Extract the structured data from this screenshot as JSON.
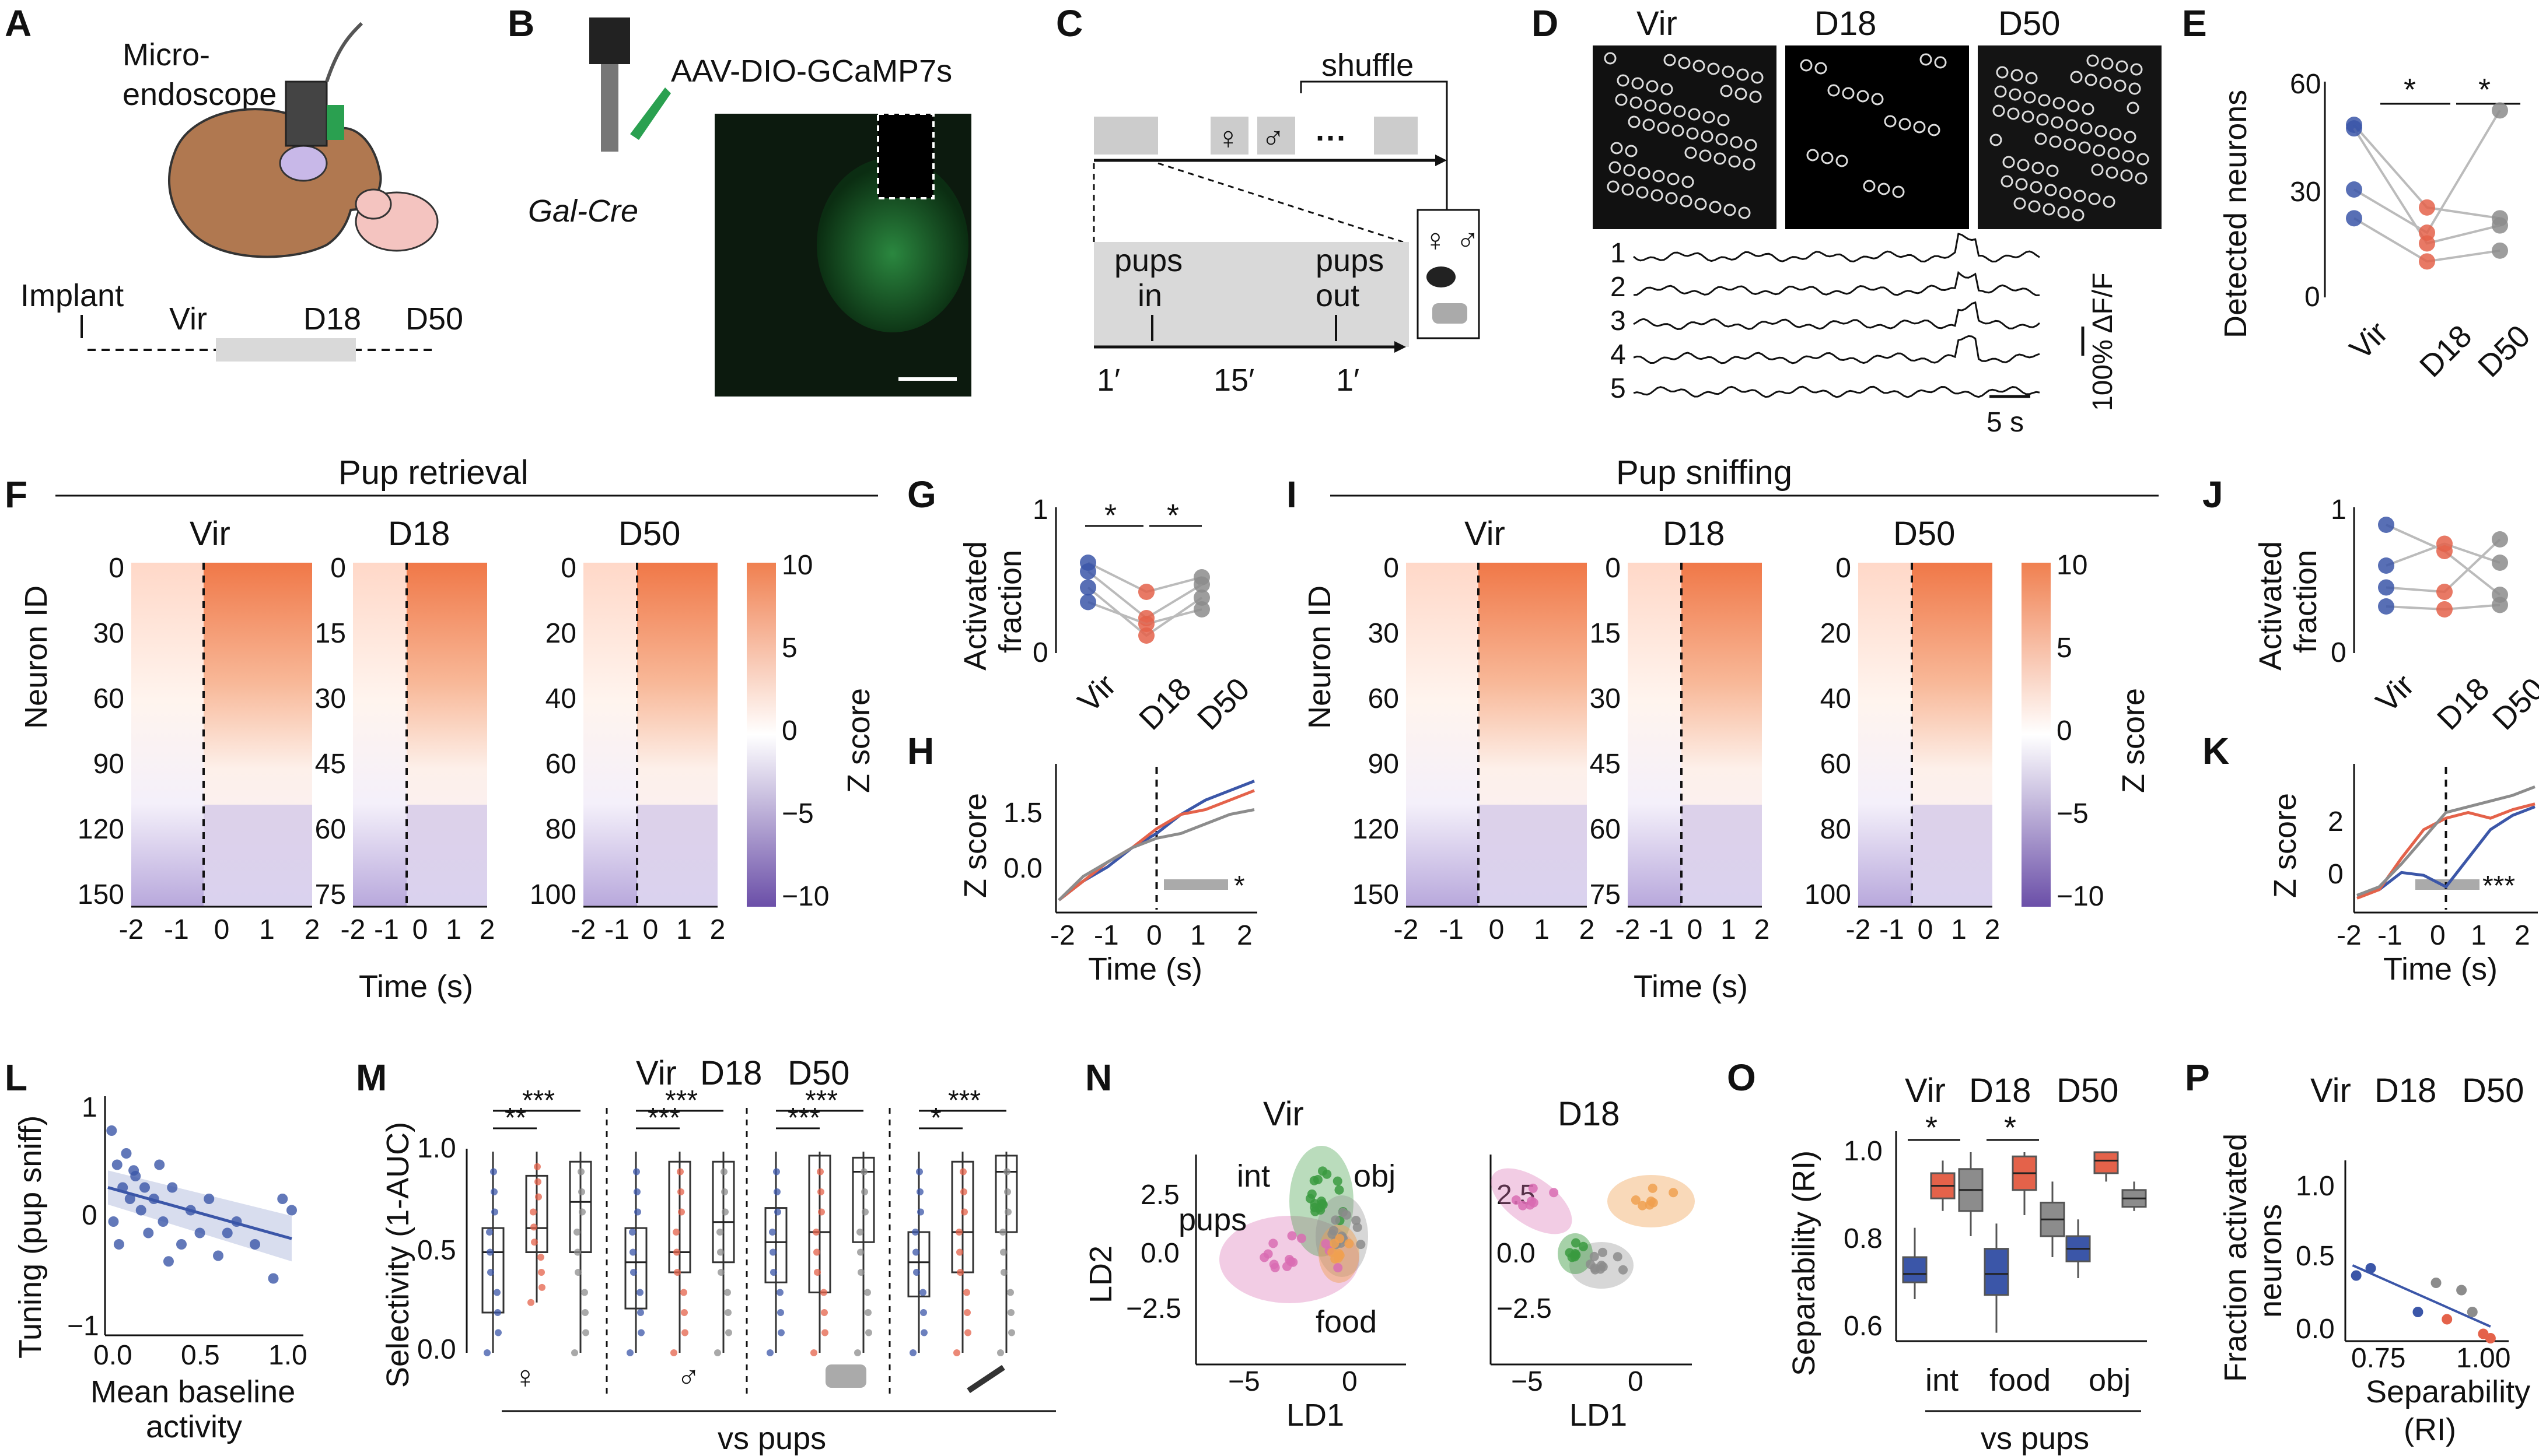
{
  "colors": {
    "vir": "#3b56a8",
    "d18": "#e4624a",
    "d50": "#8c8c8c",
    "pups": "#d96cb3",
    "int": "#3a9a3f",
    "obj": "#8c8c8c",
    "food": "#f0a050",
    "neg": "#6b4fa8",
    "pos": "#f08050"
  },
  "panels": {
    "A": "A",
    "B": "B",
    "C": "C",
    "D": "D",
    "E": "E",
    "F": "F",
    "G": "G",
    "H": "H",
    "I": "I",
    "J": "J",
    "K": "K",
    "L": "L",
    "M": "M",
    "N": "N",
    "O": "O",
    "P": "P"
  },
  "groups": {
    "vir": "Vir",
    "d18": "D18",
    "d50": "D50"
  },
  "panelA": {
    "micro1": "Micro-",
    "micro2": "endoscope",
    "implant": "Implant",
    "vir": "Vir",
    "d18": "D18",
    "d50": "D50"
  },
  "panelB": {
    "virus": "AAV-DIO-GCaMP7s",
    "line": "Gal-Cre"
  },
  "panelC": {
    "shuffle": "shuffle",
    "female": "♀",
    "male": "♂",
    "dots": "···",
    "pups_in_1": "pups",
    "pups_in_2": "in",
    "pups_out_1": "pups",
    "pups_out_2": "out",
    "t1": "1′",
    "t2": "15′",
    "t3": "1′",
    "icons": "♀ ♂"
  },
  "panelD": {
    "traces": [
      "1",
      "2",
      "3",
      "4",
      "5"
    ],
    "scale_dff": "100% ΔF/F",
    "scale_t": "5 s"
  },
  "panelE": {
    "ylabel": "Detected neurons",
    "yticks": [
      "0",
      "30",
      "60"
    ],
    "sig1": "*",
    "sig2": "*"
  },
  "panelF": {
    "title": "Pup retrieval",
    "ylabel": "Neuron ID",
    "xlabel": "Time (s)",
    "cbar_label": "Z score",
    "cbar_ticks": [
      "10",
      "5",
      "0",
      "−5",
      "−10"
    ],
    "vir_ticks": [
      "0",
      "30",
      "60",
      "90",
      "120",
      "150"
    ],
    "d18_ticks": [
      "0",
      "15",
      "30",
      "45",
      "60",
      "75"
    ],
    "d50_ticks": [
      "0",
      "20",
      "40",
      "60",
      "80",
      "100"
    ],
    "xticks": [
      "-2",
      "-1",
      "0",
      "1",
      "2"
    ]
  },
  "panelG": {
    "ylabel1": "Activated",
    "ylabel2": "fraction",
    "yticks": [
      "0",
      "1"
    ],
    "sig1": "*",
    "sig2": "*"
  },
  "panelH": {
    "ylabel": "Z score",
    "xlabel": "Time (s)",
    "yticks": [
      "1.5",
      "0.0"
    ],
    "xticks": [
      "-2",
      "-1",
      "0",
      "1",
      "2"
    ],
    "sig": "*"
  },
  "panelI": {
    "title": "Pup sniffing",
    "ylabel": "Neuron ID",
    "xlabel": "Time (s)",
    "cbar_label": "Z score",
    "cbar_ticks": [
      "10",
      "5",
      "0",
      "−5",
      "−10"
    ],
    "vir_ticks": [
      "0",
      "30",
      "60",
      "90",
      "120",
      "150"
    ],
    "d18_ticks": [
      "0",
      "15",
      "30",
      "45",
      "60",
      "75"
    ],
    "d50_ticks": [
      "0",
      "20",
      "40",
      "60",
      "80",
      "100"
    ],
    "xticks": [
      "-2",
      "-1",
      "0",
      "1",
      "2"
    ]
  },
  "panelJ": {
    "ylabel1": "Activated",
    "ylabel2": "fraction",
    "yticks": [
      "0",
      "1"
    ]
  },
  "panelK": {
    "ylabel": "Z score",
    "xlabel": "Time (s)",
    "yticks": [
      "2",
      "0"
    ],
    "xticks": [
      "-2",
      "-1",
      "0",
      "1",
      "2"
    ],
    "sig": "***"
  },
  "panelL": {
    "ylabel": "Tuning (pup sniff)",
    "xlabel1": "Mean baseline",
    "xlabel2": "activity",
    "yticks": [
      "1",
      "0",
      "−1"
    ],
    "xticks": [
      "0.0",
      "0.5",
      "1.0"
    ]
  },
  "panelM": {
    "ylabel": "Selectivity (1-AUC)",
    "yticks": [
      "1.0",
      "0.5",
      "0.0"
    ],
    "xlabel": "vs pups",
    "sigs": [
      "**",
      "***",
      "***",
      "***",
      "***",
      "***",
      "*",
      "***"
    ],
    "icons": [
      "♀",
      "♂"
    ]
  },
  "panelN": {
    "vir_title": "Vir",
    "d18_title": "D18",
    "ylabel": "LD2",
    "xlabel": "LD1",
    "yticks": [
      "2.5",
      "0.0",
      "−2.5"
    ],
    "xticks": [
      "−5",
      "0"
    ],
    "labels": {
      "int": "int",
      "obj": "obj",
      "pups": "pups",
      "food": "food"
    }
  },
  "panelO": {
    "ylabel": "Separability (RI)",
    "yticks": [
      "1.0",
      "0.8",
      "0.6"
    ],
    "xticks": [
      "int",
      "food",
      "obj"
    ],
    "xlabel": "vs pups",
    "sig1": "*",
    "sig2": "*"
  },
  "panelP": {
    "ylabel1": "Fraction activated",
    "ylabel2": "neurons",
    "xlabel1": "Separability",
    "xlabel2": "(RI)",
    "yticks": [
      "1.0",
      "0.5",
      "0.0"
    ],
    "xticks": [
      "0.75",
      "1.00"
    ]
  },
  "chart_data": [
    {
      "type": "scatter",
      "panel": "E",
      "categories": [
        "Vir",
        "D18",
        "D50"
      ],
      "ylim": [
        0,
        60
      ],
      "series": [
        {
          "values": [
            48,
            25,
            22
          ]
        },
        {
          "values": [
            47,
            15,
            20
          ]
        },
        {
          "values": [
            30,
            18,
            52
          ]
        },
        {
          "values": [
            22,
            10,
            13
          ]
        }
      ]
    },
    {
      "type": "scatter",
      "panel": "G",
      "categories": [
        "Vir",
        "D18",
        "D50"
      ],
      "ylim": [
        0,
        1
      ],
      "series": [
        {
          "values": [
            0.62,
            0.42,
            0.52
          ]
        },
        {
          "values": [
            0.56,
            0.24,
            0.47
          ]
        },
        {
          "values": [
            0.45,
            0.12,
            0.38
          ]
        },
        {
          "values": [
            0.35,
            0.2,
            0.3
          ]
        }
      ]
    },
    {
      "type": "scatter",
      "panel": "J",
      "categories": [
        "Vir",
        "D18",
        "D50"
      ],
      "ylim": [
        0,
        1
      ],
      "series": [
        {
          "values": [
            0.88,
            0.7,
            0.4
          ]
        },
        {
          "values": [
            0.6,
            0.75,
            0.62
          ]
        },
        {
          "values": [
            0.45,
            0.42,
            0.78
          ]
        },
        {
          "values": [
            0.32,
            0.3,
            0.33
          ]
        }
      ]
    },
    {
      "type": "line",
      "panel": "H",
      "xlim": [
        -2,
        2
      ],
      "ylim": [
        -0.5,
        2.5
      ],
      "x": [
        -2,
        -1.5,
        -1,
        -0.5,
        0,
        0.5,
        1,
        1.5,
        2
      ],
      "series": [
        {
          "values": [
            -0.3,
            0.1,
            0.4,
            0.8,
            1.1,
            1.5,
            1.8,
            2.0,
            2.2
          ]
        },
        {
          "values": [
            -0.3,
            0.1,
            0.5,
            0.8,
            1.2,
            1.5,
            1.6,
            1.8,
            2.0
          ]
        },
        {
          "values": [
            -0.3,
            0.2,
            0.5,
            0.8,
            1.0,
            1.1,
            1.3,
            1.5,
            1.6
          ]
        }
      ]
    },
    {
      "type": "line",
      "panel": "K",
      "xlim": [
        -2,
        2
      ],
      "ylim": [
        -1,
        4
      ],
      "x": [
        -2,
        -1.5,
        -1,
        -0.5,
        0,
        0.5,
        1,
        1.5,
        2
      ],
      "series": [
        {
          "values": [
            -0.5,
            -0.3,
            0.3,
            0.2,
            -0.2,
            0.8,
            1.8,
            2.3,
            2.6
          ]
        },
        {
          "values": [
            -0.6,
            -0.3,
            0.8,
            1.8,
            2.2,
            2.4,
            2.2,
            2.5,
            2.7
          ]
        },
        {
          "values": [
            -0.5,
            -0.2,
            0.6,
            1.5,
            2.4,
            2.6,
            2.8,
            3.0,
            3.3
          ]
        }
      ]
    },
    {
      "type": "scatter",
      "panel": "L",
      "xlim": [
        0,
        1
      ],
      "ylim": [
        -1,
        1
      ],
      "points": [
        [
          0.02,
          0.8
        ],
        [
          0.05,
          0.5
        ],
        [
          0.08,
          0.3
        ],
        [
          0.1,
          0.6
        ],
        [
          0.12,
          0.2
        ],
        [
          0.15,
          0.4
        ],
        [
          0.18,
          0.1
        ],
        [
          0.2,
          0.3
        ],
        [
          0.22,
          -0.1
        ],
        [
          0.25,
          0.2
        ],
        [
          0.3,
          0.0
        ],
        [
          0.35,
          0.3
        ],
        [
          0.4,
          -0.2
        ],
        [
          0.45,
          0.1
        ],
        [
          0.5,
          -0.1
        ],
        [
          0.55,
          0.2
        ],
        [
          0.6,
          -0.3
        ],
        [
          0.7,
          0.0
        ],
        [
          0.8,
          -0.2
        ],
        [
          0.9,
          -0.5
        ],
        [
          0.95,
          0.2
        ],
        [
          1.0,
          0.1
        ],
        [
          0.03,
          0.0
        ],
        [
          0.06,
          -0.2
        ],
        [
          0.14,
          0.45
        ],
        [
          0.28,
          0.5
        ],
        [
          0.33,
          -0.35
        ],
        [
          0.65,
          -0.1
        ]
      ],
      "fit": {
        "x": [
          0,
          1
        ],
        "y": [
          0.3,
          -0.15
        ]
      }
    },
    {
      "type": "scatter",
      "panel": "P",
      "xlim": [
        0.6,
        1.05
      ],
      "ylim": [
        0,
        1.2
      ],
      "points": [
        {
          "x": 0.63,
          "y": 0.45,
          "g": "vir"
        },
        {
          "x": 0.67,
          "y": 0.5,
          "g": "vir"
        },
        {
          "x": 0.8,
          "y": 0.2,
          "g": "vir"
        },
        {
          "x": 0.85,
          "y": 0.4,
          "g": "d50"
        },
        {
          "x": 0.88,
          "y": 0.15,
          "g": "d18"
        },
        {
          "x": 0.92,
          "y": 0.35,
          "g": "d50"
        },
        {
          "x": 0.95,
          "y": 0.2,
          "g": "d50"
        },
        {
          "x": 0.98,
          "y": 0.05,
          "g": "d18"
        },
        {
          "x": 1.0,
          "y": 0.02,
          "g": "d18"
        }
      ],
      "fit": {
        "x": [
          0.62,
          1.0
        ],
        "y": [
          0.52,
          0.1
        ]
      }
    },
    {
      "type": "box",
      "panel": "O",
      "categories": [
        "int",
        "food",
        "obj"
      ],
      "ylim": [
        0.55,
        1.05
      ],
      "series": [
        {
          "group": "vir",
          "boxes": [
            {
              "q1": 0.69,
              "med": 0.71,
              "q3": 0.75,
              "lo": 0.65,
              "hi": 0.82
            },
            {
              "q1": 0.66,
              "med": 0.71,
              "q3": 0.77,
              "lo": 0.57,
              "hi": 0.83
            },
            {
              "q1": 0.74,
              "med": 0.77,
              "q3": 0.8,
              "lo": 0.7,
              "hi": 0.84
            }
          ]
        },
        {
          "group": "d18",
          "boxes": [
            {
              "q1": 0.89,
              "med": 0.92,
              "q3": 0.95,
              "lo": 0.86,
              "hi": 0.98
            },
            {
              "q1": 0.91,
              "med": 0.95,
              "q3": 0.99,
              "lo": 0.85,
              "hi": 1.0
            },
            {
              "q1": 0.95,
              "med": 0.98,
              "q3": 1.0,
              "lo": 0.93,
              "hi": 1.0
            }
          ]
        },
        {
          "group": "d50",
          "boxes": [
            {
              "q1": 0.86,
              "med": 0.91,
              "q3": 0.96,
              "lo": 0.8,
              "hi": 1.0
            },
            {
              "q1": 0.8,
              "med": 0.84,
              "q3": 0.88,
              "lo": 0.75,
              "hi": 0.93
            },
            {
              "q1": 0.87,
              "med": 0.89,
              "q3": 0.91,
              "lo": 0.86,
              "hi": 0.93
            }
          ]
        }
      ]
    },
    {
      "type": "box",
      "panel": "M",
      "categories": [
        "♀",
        "♂",
        "obj",
        "food"
      ],
      "ylim": [
        0,
        1
      ],
      "series": [
        {
          "group": "vir",
          "boxes": [
            {
              "q1": 0.2,
              "med": 0.5,
              "q3": 0.62,
              "lo": 0.0,
              "hi": 1.0
            },
            {
              "q1": 0.22,
              "med": 0.45,
              "q3": 0.62,
              "lo": 0.0,
              "hi": 1.0
            },
            {
              "q1": 0.35,
              "med": 0.55,
              "q3": 0.72,
              "lo": 0.0,
              "hi": 1.0
            },
            {
              "q1": 0.28,
              "med": 0.45,
              "q3": 0.6,
              "lo": 0.0,
              "hi": 1.0
            }
          ]
        },
        {
          "group": "d18",
          "boxes": [
            {
              "q1": 0.5,
              "med": 0.62,
              "q3": 0.88,
              "lo": 0.25,
              "hi": 1.0
            },
            {
              "q1": 0.4,
              "med": 0.5,
              "q3": 0.95,
              "lo": 0.0,
              "hi": 1.0
            },
            {
              "q1": 0.3,
              "med": 0.6,
              "q3": 0.98,
              "lo": 0.0,
              "hi": 1.0
            },
            {
              "q1": 0.4,
              "med": 0.6,
              "q3": 0.95,
              "lo": 0.0,
              "hi": 1.0
            }
          ]
        },
        {
          "group": "d50",
          "boxes": [
            {
              "q1": 0.5,
              "med": 0.75,
              "q3": 0.95,
              "lo": 0.0,
              "hi": 1.0
            },
            {
              "q1": 0.45,
              "med": 0.65,
              "q3": 0.95,
              "lo": 0.0,
              "hi": 1.0
            },
            {
              "q1": 0.55,
              "med": 0.9,
              "q3": 0.97,
              "lo": 0.0,
              "hi": 1.0
            },
            {
              "q1": 0.6,
              "med": 0.9,
              "q3": 0.98,
              "lo": 0.0,
              "hi": 1.0
            }
          ]
        }
      ]
    }
  ]
}
